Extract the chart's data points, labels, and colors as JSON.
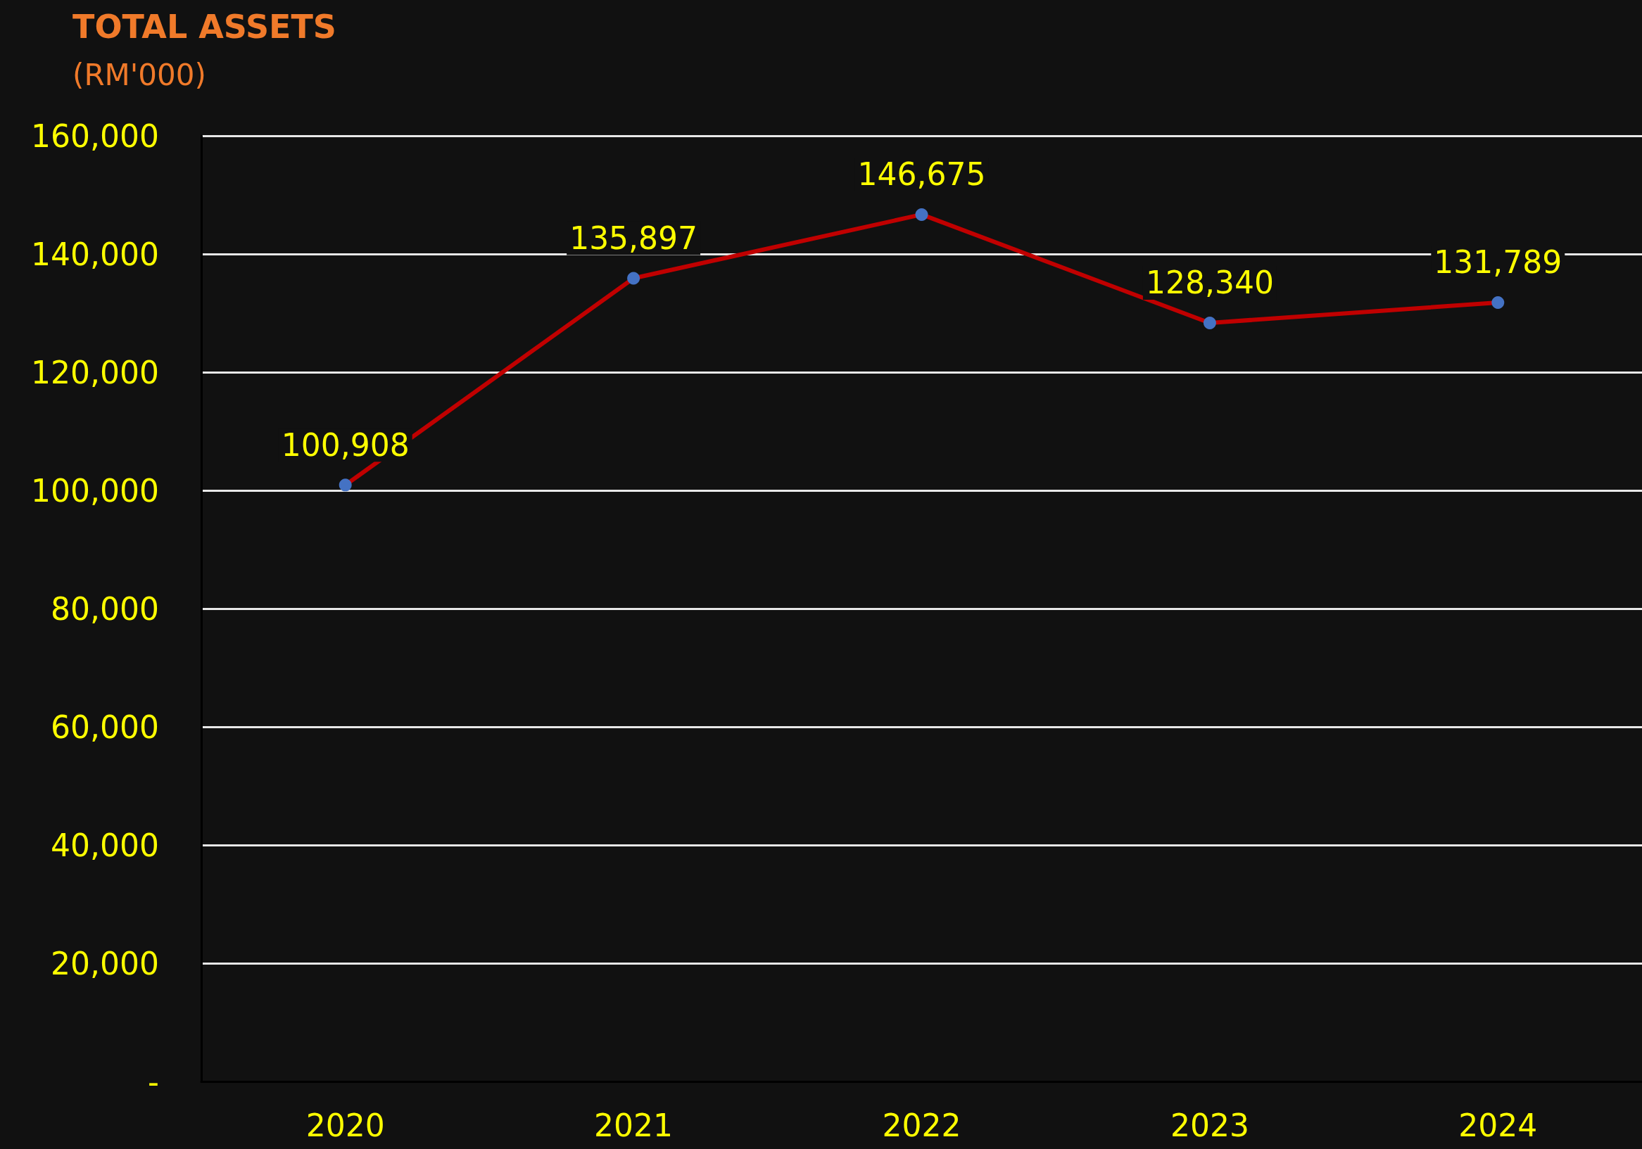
{
  "chart_data": {
    "type": "line",
    "title": "TOTAL ASSETS",
    "subtitle": "(RM'000)",
    "categories": [
      "2020",
      "2021",
      "2022",
      "2023",
      "2024"
    ],
    "series": [
      {
        "color": "#c00000",
        "colors": [
          "#4472c4",
          "#4472c4",
          "#4472c4",
          "#4472c4",
          "#4472c4"
        ],
        "values": [
          100908,
          135897,
          146675,
          128340,
          131789
        ],
        "value_labels": [
          "100,908",
          "135,897",
          "146,675",
          "128,340",
          "131,789"
        ]
      }
    ],
    "ylim": [
      0,
      160000
    ],
    "yticks": [
      {
        "value": 0,
        "label": "-"
      },
      {
        "value": 20000,
        "label": "20,000"
      },
      {
        "value": 40000,
        "label": "40,000"
      },
      {
        "value": 60000,
        "label": "60,000"
      },
      {
        "value": 80000,
        "label": "80,000"
      },
      {
        "value": 100000,
        "label": "100,000"
      },
      {
        "value": 120000,
        "label": "120,000"
      },
      {
        "value": 140000,
        "label": "140,000"
      },
      {
        "value": 160000,
        "label": "160,000"
      }
    ],
    "grid": "y",
    "marker": "circle",
    "line_style": "solid"
  }
}
